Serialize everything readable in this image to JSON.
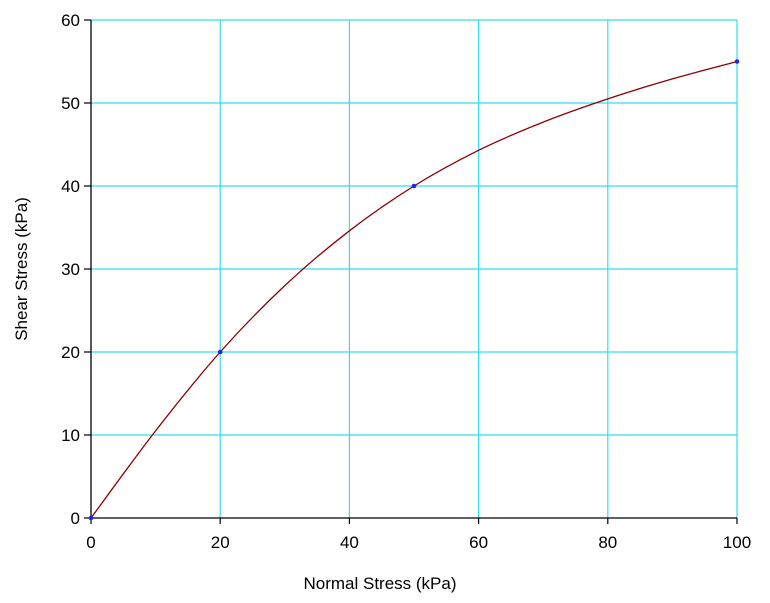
{
  "chart_data": {
    "type": "line",
    "title": "",
    "xlabel": "Normal Stress (kPa)",
    "ylabel": "Shear Stress (kPa)",
    "xlim": [
      0,
      100
    ],
    "ylim": [
      0,
      60
    ],
    "x_ticks": [
      "0",
      "20",
      "40",
      "60",
      "80",
      "100"
    ],
    "y_ticks": [
      "0",
      "10",
      "20",
      "30",
      "40",
      "50",
      "60"
    ],
    "grid": true,
    "grid_color": "#33ddee",
    "line_color": "#8b0000",
    "marker_color": "#2222ee",
    "series": [
      {
        "markers": [
          {
            "x": 0,
            "y": 0
          },
          {
            "x": 20,
            "y": 20
          },
          {
            "x": 50,
            "y": 40
          },
          {
            "x": 100,
            "y": 55
          }
        ],
        "curve": [
          {
            "x": 0,
            "y": 0
          },
          {
            "x": 10,
            "y": 10.5
          },
          {
            "x": 20,
            "y": 20
          },
          {
            "x": 30,
            "y": 28
          },
          {
            "x": 40,
            "y": 34.6
          },
          {
            "x": 50,
            "y": 40
          },
          {
            "x": 60,
            "y": 44.3
          },
          {
            "x": 70,
            "y": 47.7
          },
          {
            "x": 80,
            "y": 50.5
          },
          {
            "x": 90,
            "y": 52.9
          },
          {
            "x": 100,
            "y": 55
          }
        ]
      }
    ]
  }
}
